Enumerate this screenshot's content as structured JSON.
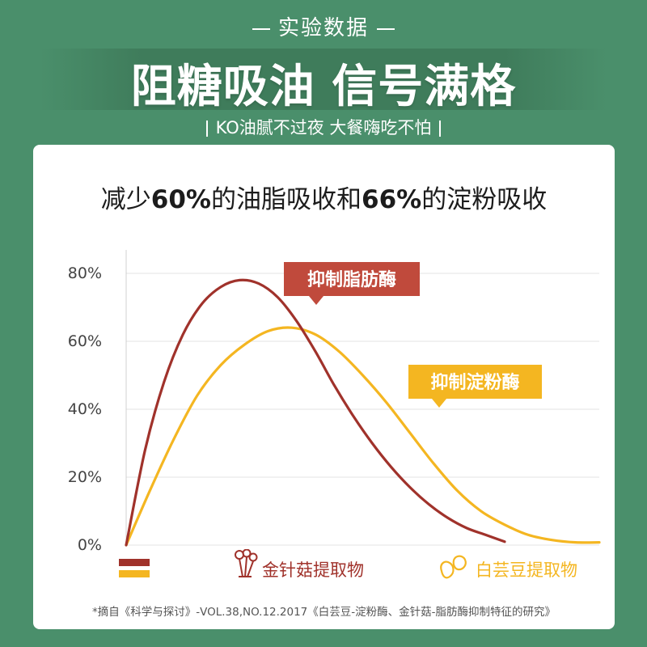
{
  "header": {
    "eyebrow": "实验数据",
    "headline": "阻糖吸油 信号满格",
    "tagline": "KO油腻不过夜 大餐嗨吃不怕"
  },
  "card": {
    "title_parts": [
      "减少",
      "60%",
      "的油脂吸收和",
      "66%",
      "的淀粉吸收"
    ],
    "source": "*摘自《科学与探讨》-VOL.38,NO.12.2017《白芸豆-淀粉酶、金针菇-脂肪酶抑制特征的研究》"
  },
  "colors": {
    "background": "#4a8f6b",
    "red": "#a0322b",
    "yellow": "#f4b621",
    "callout_red": "#c04a3c",
    "callout_yellow": "#f4b621"
  },
  "chart_data": {
    "type": "line",
    "y_ticks": [
      "0%",
      "20%",
      "40%",
      "60%",
      "80%"
    ],
    "ylim": [
      0,
      80
    ],
    "xlim": [
      0,
      100
    ],
    "grid": true,
    "series": [
      {
        "name": "金针菇提取物",
        "color": "#a0322b",
        "callout": "抑制脂肪酶",
        "points": [
          [
            0,
            0
          ],
          [
            4,
            28
          ],
          [
            8,
            48
          ],
          [
            12,
            62
          ],
          [
            16,
            71
          ],
          [
            20,
            76
          ],
          [
            24,
            78
          ],
          [
            28,
            77
          ],
          [
            32,
            73
          ],
          [
            36,
            66
          ],
          [
            40,
            57
          ],
          [
            44,
            47
          ],
          [
            48,
            38
          ],
          [
            52,
            30
          ],
          [
            56,
            23
          ],
          [
            60,
            17
          ],
          [
            64,
            12
          ],
          [
            68,
            8
          ],
          [
            72,
            5
          ],
          [
            76,
            3
          ],
          [
            80,
            1
          ]
        ]
      },
      {
        "name": "白芸豆提取物",
        "color": "#f4b621",
        "callout": "抑制淀粉酶",
        "points": [
          [
            0,
            0
          ],
          [
            5,
            16
          ],
          [
            10,
            31
          ],
          [
            15,
            44
          ],
          [
            20,
            53
          ],
          [
            25,
            59
          ],
          [
            30,
            63
          ],
          [
            35,
            64
          ],
          [
            40,
            62
          ],
          [
            45,
            57
          ],
          [
            50,
            50
          ],
          [
            55,
            42
          ],
          [
            60,
            33
          ],
          [
            65,
            24
          ],
          [
            70,
            16
          ],
          [
            75,
            10
          ],
          [
            80,
            6
          ],
          [
            85,
            3
          ],
          [
            90,
            1.5
          ],
          [
            95,
            0.8
          ],
          [
            100,
            0.8
          ]
        ]
      }
    ]
  }
}
